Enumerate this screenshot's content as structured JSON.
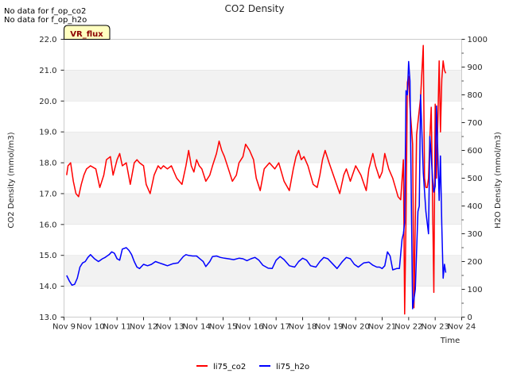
{
  "notes": [
    "No data for f_op_co2",
    "No data for f_op_h2o"
  ],
  "badge": "VR_flux",
  "chart_data": {
    "type": "line",
    "title": "CO2 Density",
    "xlabel": "Time",
    "ylabel": "CO2 Density (mmol/m3)",
    "y2label": "H2O Density (mmol/m3)",
    "xlim": [
      9,
      24
    ],
    "ylim": [
      13.0,
      22.0
    ],
    "y2lim": [
      0,
      1000
    ],
    "xticks": [
      9,
      10,
      11,
      12,
      13,
      14,
      15,
      16,
      17,
      18,
      19,
      20,
      21,
      22,
      23,
      24
    ],
    "xtick_labels": [
      "Nov 9",
      "Nov 10",
      "Nov 11",
      "Nov 12",
      "Nov 13",
      "Nov 14",
      "Nov 15",
      "Nov 16",
      "Nov 17",
      "Nov 18",
      "Nov 19",
      "Nov 20",
      "Nov 21",
      "Nov 22",
      "Nov 23",
      "Nov 24"
    ],
    "yticks": [
      13.0,
      14.0,
      15.0,
      16.0,
      17.0,
      18.0,
      19.0,
      20.0,
      21.0,
      22.0
    ],
    "ytick_labels": [
      "13.0",
      "14.0",
      "15.0",
      "16.0",
      "17.0",
      "18.0",
      "19.0",
      "20.0",
      "21.0",
      "22.0"
    ],
    "y2ticks": [
      0,
      100,
      200,
      300,
      400,
      500,
      600,
      700,
      800,
      900,
      1000
    ],
    "y2tick_labels": [
      "0",
      "100",
      "200",
      "300",
      "400",
      "500",
      "600",
      "700",
      "800",
      "900",
      "1000"
    ],
    "bands": [
      [
        14.0,
        15.0
      ],
      [
        16.0,
        17.0
      ],
      [
        18.0,
        19.0
      ],
      [
        20.0,
        21.0
      ]
    ],
    "series": [
      {
        "name": "li75_co2",
        "axis": "left",
        "color": "#ff0000",
        "x": [
          9.1,
          9.15,
          9.25,
          9.35,
          9.45,
          9.55,
          9.65,
          9.75,
          9.85,
          10.0,
          10.2,
          10.35,
          10.5,
          10.6,
          10.75,
          10.85,
          11.0,
          11.1,
          11.2,
          11.35,
          11.5,
          11.65,
          11.75,
          11.85,
          12.0,
          12.1,
          12.25,
          12.4,
          12.55,
          12.65,
          12.75,
          12.9,
          13.05,
          13.25,
          13.45,
          13.6,
          13.7,
          13.8,
          13.9,
          14.0,
          14.1,
          14.2,
          14.35,
          14.5,
          14.6,
          14.75,
          14.85,
          14.95,
          15.05,
          15.2,
          15.35,
          15.5,
          15.6,
          15.75,
          15.85,
          16.0,
          16.15,
          16.25,
          16.4,
          16.55,
          16.75,
          16.95,
          17.1,
          17.3,
          17.5,
          17.65,
          17.75,
          17.85,
          17.95,
          18.05,
          18.2,
          18.4,
          18.55,
          18.65,
          18.75,
          18.85,
          19.0,
          19.2,
          19.4,
          19.55,
          19.65,
          19.8,
          20.0,
          20.2,
          20.4,
          20.5,
          20.65,
          20.75,
          20.9,
          21.0,
          21.1,
          21.25,
          21.4,
          21.5,
          21.6,
          21.7,
          21.8,
          21.85,
          21.9,
          21.95,
          22.0,
          22.05,
          22.1,
          22.15,
          22.2,
          22.3,
          22.45,
          22.55,
          22.6,
          22.65,
          22.7,
          22.75,
          22.8,
          22.85,
          22.95,
          23.0,
          23.05,
          23.1,
          23.15,
          23.2,
          23.25,
          23.3,
          23.35,
          23.4
        ],
        "values": [
          17.6,
          17.9,
          18.0,
          17.4,
          17.0,
          16.9,
          17.3,
          17.6,
          17.8,
          17.9,
          17.8,
          17.2,
          17.6,
          18.1,
          18.2,
          17.6,
          18.1,
          18.3,
          17.9,
          18.0,
          17.3,
          18.0,
          18.1,
          18.0,
          17.9,
          17.3,
          17.0,
          17.6,
          17.9,
          17.8,
          17.9,
          17.8,
          17.9,
          17.5,
          17.3,
          17.9,
          18.4,
          17.9,
          17.7,
          18.1,
          17.9,
          17.8,
          17.4,
          17.6,
          17.9,
          18.3,
          18.7,
          18.4,
          18.2,
          17.8,
          17.4,
          17.6,
          18.0,
          18.2,
          18.6,
          18.4,
          18.1,
          17.5,
          17.1,
          17.8,
          18.0,
          17.8,
          18.0,
          17.4,
          17.1,
          17.8,
          18.2,
          18.4,
          18.1,
          18.2,
          17.9,
          17.3,
          17.2,
          17.6,
          18.1,
          18.4,
          18.0,
          17.5,
          17.0,
          17.6,
          17.8,
          17.4,
          17.9,
          17.6,
          17.1,
          17.8,
          18.3,
          17.9,
          17.5,
          17.7,
          18.3,
          17.8,
          17.5,
          17.2,
          16.9,
          16.8,
          18.1,
          13.1,
          16.2,
          20.6,
          20.8,
          19.8,
          19.2,
          18.6,
          13.3,
          18.9,
          20.1,
          21.8,
          17.5,
          17.2,
          17.2,
          17.5,
          18.8,
          19.8,
          13.8,
          19.9,
          17.5,
          19.3,
          21.3,
          19.0,
          20.7,
          21.3,
          21.0,
          20.9
        ],
        "label_line": true
      },
      {
        "name": "li75_h2o",
        "axis": "right",
        "color": "#0000ff",
        "x": [
          9.1,
          9.2,
          9.3,
          9.4,
          9.5,
          9.6,
          9.7,
          9.8,
          9.9,
          10.0,
          10.15,
          10.3,
          10.45,
          10.55,
          10.7,
          10.8,
          10.9,
          11.0,
          11.1,
          11.2,
          11.35,
          11.45,
          11.55,
          11.65,
          11.75,
          11.85,
          12.0,
          12.15,
          12.3,
          12.45,
          12.6,
          12.75,
          12.9,
          13.1,
          13.3,
          13.5,
          13.6,
          13.7,
          13.85,
          14.0,
          14.1,
          14.25,
          14.35,
          14.5,
          14.6,
          14.75,
          14.9,
          15.05,
          15.2,
          15.4,
          15.6,
          15.75,
          15.9,
          16.05,
          16.2,
          16.35,
          16.5,
          16.7,
          16.85,
          17.0,
          17.15,
          17.3,
          17.5,
          17.7,
          17.85,
          18.0,
          18.15,
          18.3,
          18.5,
          18.65,
          18.8,
          18.95,
          19.1,
          19.3,
          19.5,
          19.65,
          19.8,
          19.95,
          20.1,
          20.3,
          20.5,
          20.65,
          20.8,
          20.9,
          21.0,
          21.1,
          21.2,
          21.3,
          21.4,
          21.55,
          21.65,
          21.75,
          21.8,
          21.85,
          21.9,
          21.95,
          22.0,
          22.05,
          22.1,
          22.15,
          22.25,
          22.35,
          22.4,
          22.45,
          22.55,
          22.65,
          22.75,
          22.8,
          22.85,
          22.9,
          22.95,
          23.0,
          23.05,
          23.1,
          23.15,
          23.2,
          23.25,
          23.3,
          23.35,
          23.4
        ],
        "values": [
          150,
          130,
          115,
          118,
          140,
          180,
          195,
          200,
          215,
          225,
          210,
          200,
          210,
          215,
          225,
          235,
          230,
          210,
          205,
          245,
          250,
          240,
          225,
          200,
          180,
          175,
          190,
          185,
          190,
          200,
          195,
          190,
          185,
          192,
          195,
          218,
          225,
          222,
          220,
          220,
          212,
          200,
          182,
          200,
          218,
          220,
          215,
          212,
          210,
          207,
          212,
          210,
          203,
          210,
          215,
          205,
          187,
          176,
          175,
          205,
          218,
          207,
          185,
          180,
          200,
          212,
          205,
          185,
          180,
          200,
          215,
          210,
          195,
          175,
          200,
          215,
          210,
          190,
          180,
          195,
          198,
          187,
          180,
          180,
          175,
          185,
          235,
          220,
          170,
          175,
          175,
          280,
          300,
          340,
          815,
          800,
          920,
          850,
          420,
          30,
          100,
          380,
          400,
          800,
          520,
          380,
          300,
          650,
          580,
          500,
          450,
          470,
          760,
          590,
          420,
          580,
          330,
          140,
          190,
          160
        ],
        "label_line": true
      }
    ],
    "legend": {
      "position": "bottom-center",
      "entries": [
        "li75_co2",
        "li75_h2o"
      ]
    }
  }
}
